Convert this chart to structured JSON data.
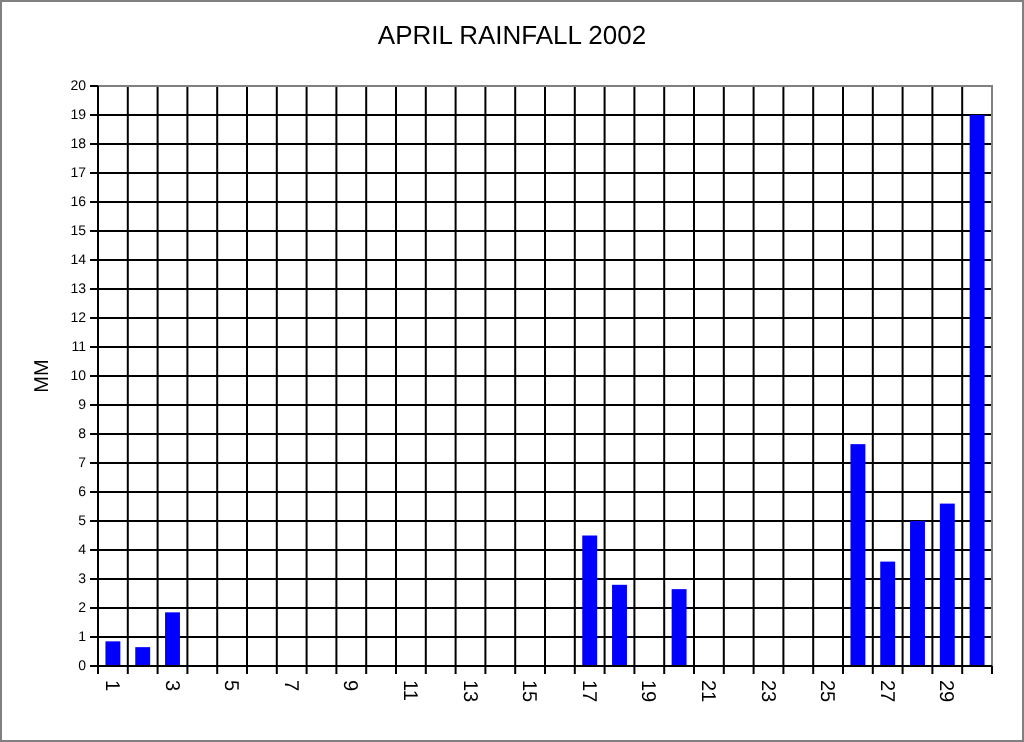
{
  "chart_data": {
    "type": "bar",
    "title": "APRIL RAINFALL 2002",
    "ylabel": "MM",
    "categories": [
      "1",
      null,
      "3",
      null,
      "5",
      null,
      "7",
      null,
      "9",
      null,
      "11",
      null,
      "13",
      null,
      "15",
      null,
      "17",
      null,
      "19",
      null,
      "21",
      null,
      "23",
      null,
      "25",
      null,
      "27",
      null,
      "29",
      null
    ],
    "values": [
      0.85,
      0.65,
      1.85,
      0,
      0,
      0,
      0,
      0,
      0,
      0,
      0,
      0,
      0,
      0,
      0,
      0,
      4.5,
      2.8,
      0,
      2.65,
      0,
      0,
      0,
      0,
      0,
      7.65,
      3.6,
      5.0,
      5.6,
      19.0
    ],
    "color": "#0000ff",
    "ylim": [
      0,
      20
    ],
    "yticks": [
      0,
      1,
      2,
      3,
      4,
      5,
      6,
      7,
      8,
      9,
      10,
      11,
      12,
      13,
      14,
      15,
      16,
      17,
      18,
      19,
      20
    ],
    "grid": true
  }
}
